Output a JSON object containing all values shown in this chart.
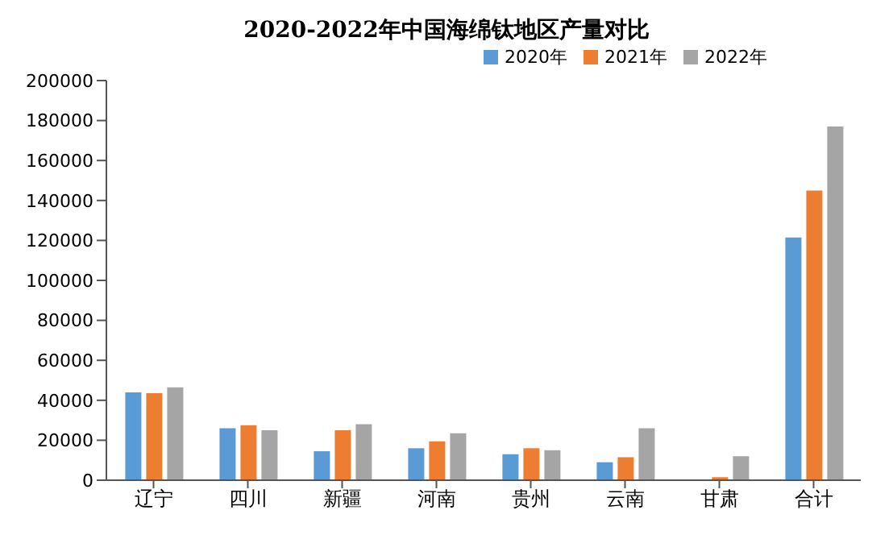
{
  "chart_data": {
    "type": "bar",
    "title": "2020-2022年中国海绵钛地区产量对比",
    "categories": [
      "辽宁",
      "四川",
      "新疆",
      "河南",
      "贵州",
      "云南",
      "甘肃",
      "合计"
    ],
    "series": [
      {
        "name": "2020年",
        "color": "#5b9bd5",
        "values": [
          44000,
          26000,
          14500,
          16000,
          13000,
          9000,
          0,
          121500
        ]
      },
      {
        "name": "2021年",
        "color": "#ed7d31",
        "values": [
          43500,
          27500,
          25000,
          19500,
          16000,
          11500,
          1500,
          145000
        ]
      },
      {
        "name": "2022年",
        "color": "#a5a5a5",
        "values": [
          46500,
          25000,
          28000,
          23500,
          15000,
          26000,
          12000,
          177000
        ]
      }
    ],
    "ylim": [
      0,
      200000
    ],
    "yticks": [
      0,
      20000,
      40000,
      60000,
      80000,
      100000,
      120000,
      140000,
      160000,
      180000,
      200000
    ],
    "grid": false,
    "legend": "top right"
  }
}
